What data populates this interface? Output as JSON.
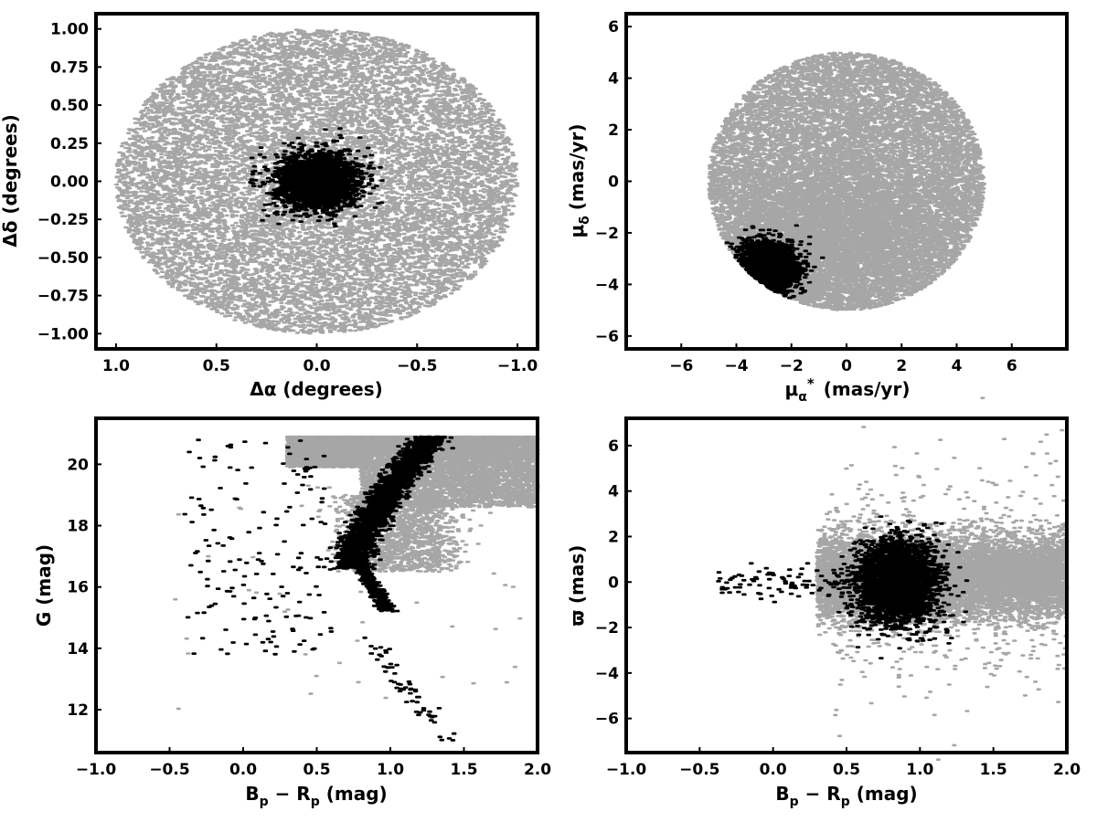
{
  "colors": {
    "field": "#a6a6a6",
    "members": "#000000",
    "axes": "#000000"
  },
  "chart_data": [
    {
      "id": "spatial",
      "type": "scatter",
      "xlabel": "Δα (degrees)",
      "ylabel": "Δδ (degrees)",
      "xlim": [
        1.1,
        -1.1
      ],
      "ylim": [
        -1.1,
        1.1
      ],
      "x_inverted": true,
      "xticks": [
        1.0,
        0.5,
        0.0,
        -0.5,
        -1.0
      ],
      "xtick_labels": [
        "1.0",
        "0.5",
        "0.0",
        "−0.5",
        "−1.0"
      ],
      "yticks": [
        1.0,
        0.75,
        0.5,
        0.25,
        0.0,
        -0.25,
        -0.5,
        -0.75,
        -1.0
      ],
      "ytick_labels": [
        "1.00",
        "0.75",
        "0.50",
        "0.25",
        "0.00",
        "−0.25",
        "−0.50",
        "−0.75",
        "−1.00"
      ],
      "grid": false,
      "series": [
        {
          "color": "#a6a6a6",
          "distribution": "uniform disk",
          "center": [
            0.0,
            0.0
          ],
          "radius": 1.0,
          "approx_points": 12000
        },
        {
          "color": "#000000",
          "distribution": "gaussian cluster",
          "center": [
            0.0,
            0.0
          ],
          "spread": [
            0.1,
            0.09
          ],
          "approx_points": 2500
        }
      ]
    },
    {
      "id": "proper-motion",
      "type": "scatter",
      "xlabel": "μ",
      "xlabel_sub": "α",
      "xlabel_sup": "*",
      "xlabel_unit": "(mas/yr)",
      "ylabel": "μ",
      "ylabel_sub": "δ",
      "ylabel_unit": "(mas/yr)",
      "xlim": [
        -8,
        8
      ],
      "ylim": [
        -6.5,
        6.5
      ],
      "xticks": [
        -6,
        -4,
        -2,
        0,
        2,
        4,
        6
      ],
      "xtick_labels": [
        "−6",
        "−4",
        "−2",
        "0",
        "2",
        "4",
        "6"
      ],
      "yticks": [
        6,
        4,
        2,
        0,
        -2,
        -4,
        -6
      ],
      "ytick_labels": [
        "6",
        "4",
        "2",
        "0",
        "−2",
        "−4",
        "−6"
      ],
      "grid": false,
      "series": [
        {
          "color": "#a6a6a6",
          "distribution": "uniform disk",
          "center": [
            0.0,
            0.0
          ],
          "radius": 5.0,
          "approx_points": 12000
        },
        {
          "color": "#000000",
          "distribution": "gaussian cluster",
          "center": [
            -2.9,
            -3.4
          ],
          "spread": [
            0.55,
            0.5
          ],
          "approx_points": 2500
        }
      ]
    },
    {
      "id": "cmd",
      "type": "scatter",
      "xlabel": "B",
      "xlabel_sub1": "p",
      "xlabel_mid": " − R",
      "xlabel_sub2": "p",
      "xlabel_unit": " (mag)",
      "ylabel": "G (mag)",
      "xlim": [
        -1.0,
        2.0
      ],
      "ylim": [
        10.6,
        21.5
      ],
      "y_inverted": false,
      "xticks": [
        -1.0,
        -0.5,
        0.0,
        0.5,
        1.0,
        1.5,
        2.0
      ],
      "xtick_labels": [
        "−1.0",
        "−0.5",
        "0.0",
        "0.5",
        "1.0",
        "1.5",
        "2.0"
      ],
      "yticks": [
        20,
        18,
        16,
        14,
        12
      ],
      "ytick_labels": [
        "20",
        "18",
        "16",
        "14",
        "12"
      ],
      "grid": false,
      "series": [
        {
          "color": "#a6a6a6",
          "distribution": "field stars",
          "approx_points": 12000
        },
        {
          "color": "#000000",
          "distribution": "cluster sequence",
          "approx_points": 2500
        }
      ]
    },
    {
      "id": "parallax",
      "type": "scatter",
      "xlabel": "B",
      "xlabel_sub1": "p",
      "xlabel_mid": " − R",
      "xlabel_sub2": "p",
      "xlabel_unit": " (mag)",
      "ylabel": "ϖ (mas)",
      "xlim": [
        -1.0,
        2.0
      ],
      "ylim": [
        -7.5,
        7.2
      ],
      "xticks": [
        -1.0,
        -0.5,
        0.0,
        0.5,
        1.0,
        1.5,
        2.0
      ],
      "xtick_labels": [
        "−1.0",
        "−0.5",
        "0.0",
        "0.5",
        "1.0",
        "1.5",
        "2.0"
      ],
      "yticks": [
        6,
        4,
        2,
        0,
        -2,
        -4,
        -6
      ],
      "ytick_labels": [
        "6",
        "4",
        "2",
        "0",
        "−2",
        "−4",
        "−6"
      ],
      "grid": false,
      "series": [
        {
          "color": "#a6a6a6",
          "distribution": "field band",
          "approx_points": 10000
        },
        {
          "color": "#000000",
          "distribution": "gaussian cluster",
          "center": [
            0.85,
            0.0
          ],
          "spread": [
            0.14,
            1.0
          ],
          "approx_points": 3000
        }
      ]
    }
  ]
}
